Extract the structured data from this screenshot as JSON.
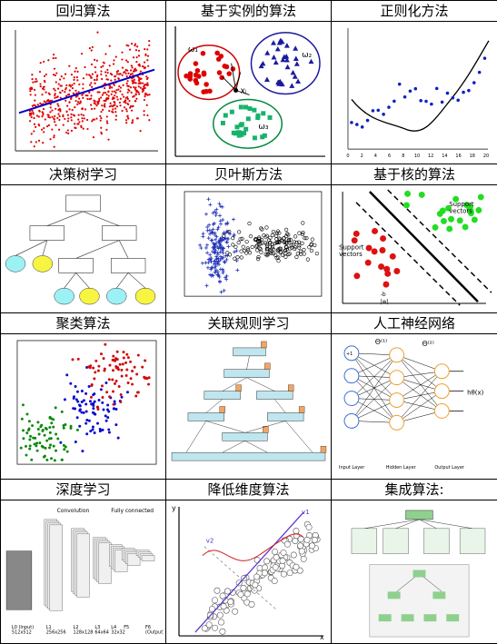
{
  "cells": [
    {
      "title": "回归算法"
    },
    {
      "title": "基于实例的算法"
    },
    {
      "title": "正则化方法"
    },
    {
      "title": "决策树学习"
    },
    {
      "title": "贝叶斯方法"
    },
    {
      "title": "基于核的算法"
    },
    {
      "title": "聚类算法"
    },
    {
      "title": "关联规则学习"
    },
    {
      "title": "人工神经网络"
    },
    {
      "title": "深度学习"
    },
    {
      "title": "降低维度算法"
    },
    {
      "title": "集成算法:"
    }
  ],
  "labels": {
    "instance": {
      "w1": "ω₁",
      "w2": "ω₂",
      "w3": "ω₃",
      "xj": "xⱼ"
    },
    "kernel": {
      "support_top": "Support\nvectors",
      "support_left": "Support\nvectors",
      "b": "-b",
      "w": "|w|"
    },
    "nn": {
      "theta1": "Θ⁽¹⁾",
      "theta2": "Θ⁽²⁾",
      "hx": "hθ(x)",
      "input": "Input Layer",
      "hidden": "Hidden Layer",
      "output": "Output Layer",
      "plus1": "+1"
    },
    "deep": {
      "conv": "Convolution",
      "fc": "Fully connected",
      "layers": [
        "L0 (Input)\n512x512",
        "L1\n256x256",
        "L2\n128x128",
        "L3\n64x64",
        "L4\n32x32",
        "F5",
        "F6\n(Output)"
      ]
    },
    "dim": {
      "y": "y",
      "x": "x",
      "v1": "v1",
      "v2": "v2"
    },
    "reg_axes": {
      "y": "y",
      "x": "x"
    },
    "regularization_x_ticks": [
      "0",
      "2",
      "4",
      "6",
      "8",
      "10",
      "12",
      "14",
      "16",
      "18",
      "20"
    ]
  }
}
